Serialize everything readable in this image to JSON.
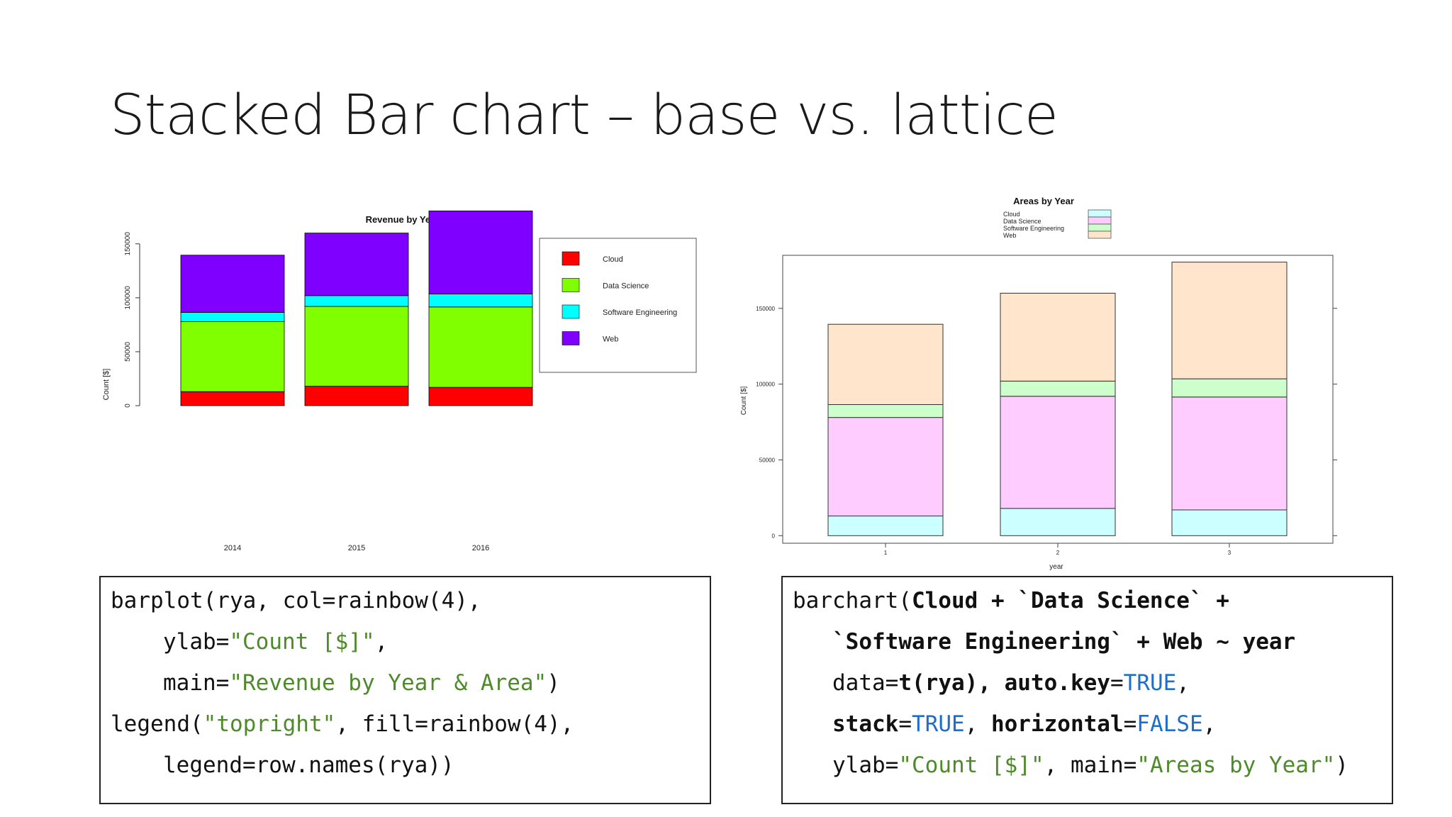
{
  "slide": {
    "title": "Stacked Bar chart – base vs. lattice"
  },
  "colors": {
    "base": [
      "#ff0000",
      "#80ff00",
      "#00ffff",
      "#8000ff"
    ],
    "lattice": [
      "#ccffff",
      "#ffccff",
      "#ccffcc",
      "#ffe5cc"
    ]
  },
  "chart_data": [
    {
      "type": "bar",
      "stacked": true,
      "title": "Revenue by Year & Area",
      "ylabel": "Count [$]",
      "xlabel": "",
      "categories": [
        "2014",
        "2015",
        "2016"
      ],
      "series": [
        {
          "name": "Cloud",
          "values": [
            13000,
            18000,
            17000
          ]
        },
        {
          "name": "Data Science",
          "values": [
            65000,
            74000,
            74500
          ]
        },
        {
          "name": "Software Engineering",
          "values": [
            8500,
            10000,
            12000
          ]
        },
        {
          "name": "Web",
          "values": [
            53000,
            58000,
            77000
          ]
        }
      ],
      "ylim": [
        0,
        180000
      ],
      "yticks": [
        "0",
        "50000",
        "100000",
        "150000"
      ],
      "legend_position": "top-right",
      "grid": false
    },
    {
      "type": "bar",
      "stacked": true,
      "title": "Areas by Year",
      "ylabel": "Count [$]",
      "xlabel": "year",
      "categories": [
        "1",
        "2",
        "3"
      ],
      "series": [
        {
          "name": "Cloud",
          "values": [
            13000,
            18000,
            17000
          ]
        },
        {
          "name": "Data Science",
          "values": [
            65000,
            74000,
            74500
          ]
        },
        {
          "name": "Software Engineering",
          "values": [
            8500,
            10000,
            12000
          ]
        },
        {
          "name": "Web",
          "values": [
            53000,
            58000,
            77000
          ]
        }
      ],
      "ylim": [
        -5000,
        185000
      ],
      "yticks": [
        "0",
        "50000",
        "100000",
        "150000"
      ],
      "legend_position": "top",
      "grid": false
    }
  ],
  "code": {
    "base": {
      "l1": {
        "a": "barplot(rya, col=rainbow(4),",
        "b": ""
      },
      "l2": {
        "a": "ylab=",
        "b": "\"Count [$]\"",
        "c": ","
      },
      "l3": {
        "a": "main=",
        "b": "\"Revenue by Year & Area\"",
        "c": ")"
      },
      "l4": {
        "a": "legend(",
        "b": "\"topright\"",
        "c": ", fill=rainbow(4),"
      },
      "l5": {
        "a": "legend=row.names(rya))"
      }
    },
    "lattice": {
      "l1": {
        "a": "barchart(",
        "b": "Cloud + `Data Science` +"
      },
      "l2": {
        "a": "`Software Engineering` + Web ~ year"
      },
      "l3": {
        "a": "data=",
        "b": "t(rya), auto.key",
        "c": "=",
        "d": "TRUE",
        "e": ","
      },
      "l4": {
        "a": "stack",
        "b": "=",
        "c": "TRUE",
        "d": ", ",
        "e": "horizontal",
        "f": "=",
        "g": "FALSE",
        "h": ","
      },
      "l5": {
        "a": "ylab=",
        "b": "\"Count [$]\"",
        "c": ", main=",
        "d": "\"Areas by Year\"",
        "e": ")"
      }
    }
  }
}
